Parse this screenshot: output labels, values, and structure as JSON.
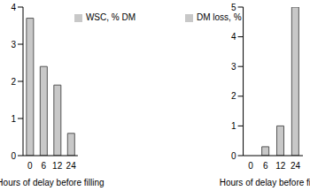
{
  "chart_data": [
    {
      "type": "bar",
      "categories": [
        "0",
        "6",
        "12",
        "24"
      ],
      "xlabel": "Hours of delay before filling",
      "series": [
        {
          "name": "WSC, % DM",
          "color": "#c8c8c8",
          "values": [
            3.7,
            2.4,
            1.9,
            0.6
          ]
        }
      ],
      "ylim": [
        0,
        4
      ],
      "yticks": [
        0,
        1,
        2,
        3,
        4
      ],
      "legend": "upper right"
    },
    {
      "type": "bar",
      "categories": [
        "0",
        "6",
        "12",
        "24"
      ],
      "xlabel": "Hours of delay before filling",
      "series": [
        {
          "name": "DM loss, %",
          "color": "#c8c8c8",
          "values": [
            0,
            0.3,
            1.0,
            5.0
          ]
        }
      ],
      "ylim": [
        0,
        5
      ],
      "yticks": [
        0,
        1,
        2,
        3,
        4,
        5
      ],
      "legend": "upper left"
    }
  ]
}
